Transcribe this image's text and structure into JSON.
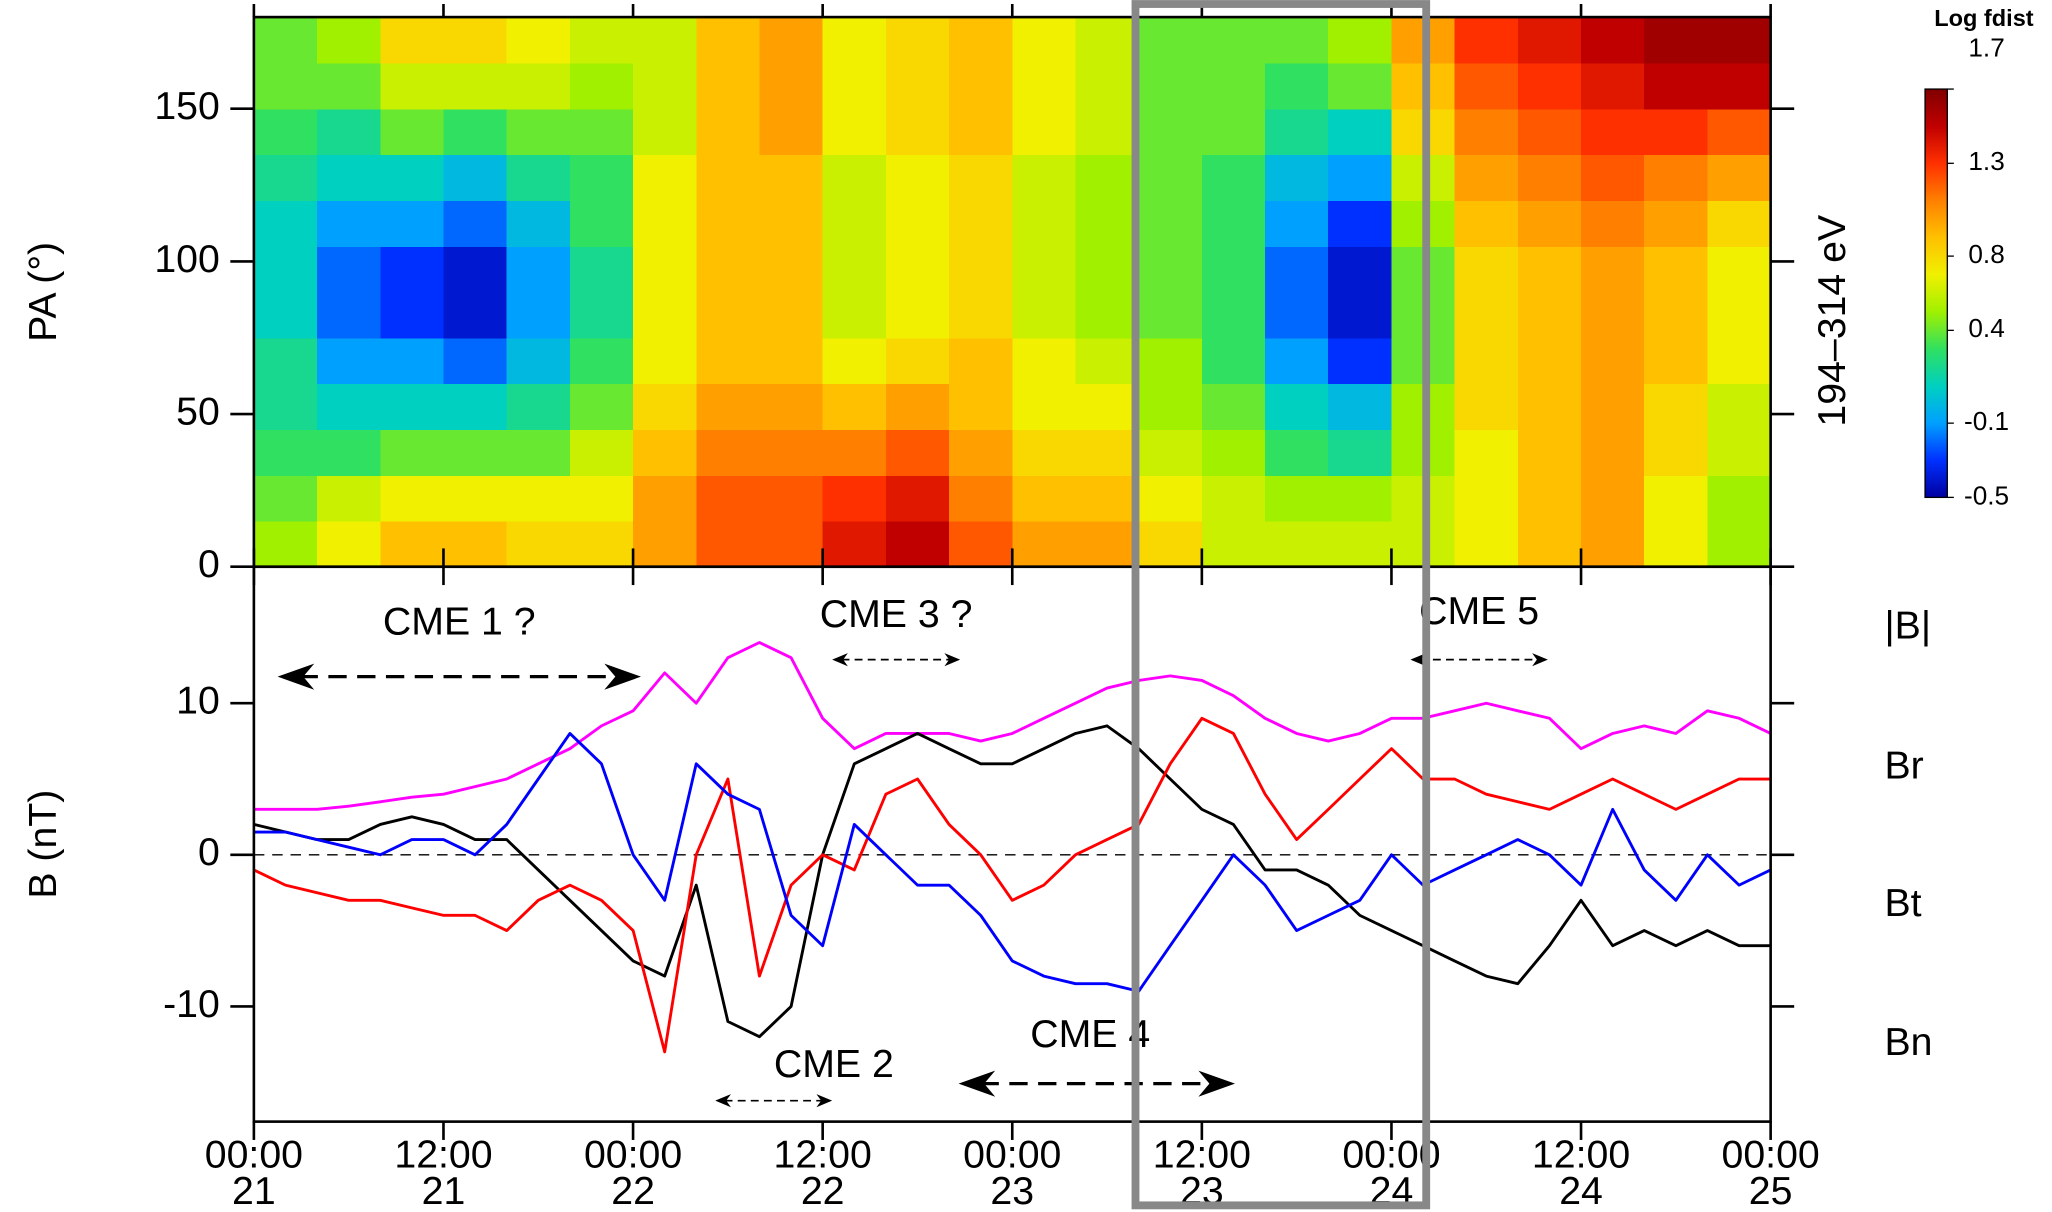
{
  "chart_data": [
    {
      "type": "heatmap",
      "ylabel": "PA (°)",
      "right_label": "194–314 eV",
      "colorbar_title": "Log fdist",
      "x": [
        0,
        4,
        8,
        12,
        16,
        20,
        24,
        28,
        32,
        36,
        40,
        44,
        48,
        52,
        56,
        60,
        64,
        68,
        72,
        76,
        80,
        84,
        88,
        92,
        96
      ],
      "y": [
        0,
        15,
        30,
        45,
        60,
        75,
        90,
        105,
        120,
        135,
        150,
        165,
        180
      ],
      "values": [
        [
          0.5,
          0.4,
          0.3,
          0.2,
          0.2,
          0.1,
          0.1,
          0.1,
          0.2,
          0.3,
          0.4,
          0.4
        ],
        [
          0.7,
          0.6,
          0.3,
          0.1,
          -0.1,
          -0.2,
          -0.2,
          -0.1,
          0.1,
          0.2,
          0.4,
          0.5
        ],
        [
          0.9,
          0.7,
          0.4,
          0.1,
          -0.1,
          -0.3,
          -0.3,
          -0.1,
          0.1,
          0.4,
          0.6,
          0.8
        ],
        [
          0.9,
          0.7,
          0.4,
          0.1,
          -0.2,
          -0.4,
          -0.4,
          -0.2,
          0.0,
          0.3,
          0.6,
          0.8
        ],
        [
          0.8,
          0.7,
          0.4,
          0.2,
          0.0,
          -0.1,
          -0.1,
          0.0,
          0.2,
          0.4,
          0.6,
          0.7
        ],
        [
          0.8,
          0.7,
          0.6,
          0.4,
          0.3,
          0.2,
          0.2,
          0.3,
          0.3,
          0.4,
          0.5,
          0.6
        ],
        [
          1.0,
          1.0,
          0.9,
          0.8,
          0.7,
          0.7,
          0.7,
          0.7,
          0.7,
          0.6,
          0.6,
          0.6
        ],
        [
          1.2,
          1.2,
          1.1,
          1.0,
          0.9,
          0.9,
          0.9,
          0.9,
          0.9,
          0.9,
          0.9,
          0.9
        ],
        [
          1.2,
          1.2,
          1.1,
          1.0,
          0.9,
          0.9,
          0.9,
          0.9,
          0.9,
          1.0,
          1.0,
          1.0
        ],
        [
          1.4,
          1.3,
          1.1,
          0.9,
          0.7,
          0.6,
          0.6,
          0.6,
          0.6,
          0.7,
          0.7,
          0.7
        ],
        [
          1.5,
          1.4,
          1.2,
          1.0,
          0.8,
          0.7,
          0.7,
          0.7,
          0.7,
          0.8,
          0.8,
          0.8
        ],
        [
          1.2,
          1.1,
          1.0,
          0.9,
          0.9,
          0.8,
          0.8,
          0.8,
          0.8,
          0.9,
          0.9,
          0.9
        ],
        [
          1.0,
          0.9,
          0.8,
          0.7,
          0.7,
          0.6,
          0.6,
          0.6,
          0.6,
          0.7,
          0.7,
          0.7
        ],
        [
          1.0,
          0.9,
          0.8,
          0.7,
          0.6,
          0.5,
          0.5,
          0.5,
          0.5,
          0.6,
          0.6,
          0.6
        ],
        [
          0.8,
          0.7,
          0.6,
          0.5,
          0.5,
          0.4,
          0.4,
          0.4,
          0.4,
          0.4,
          0.4,
          0.4
        ],
        [
          0.6,
          0.6,
          0.5,
          0.4,
          0.3,
          0.3,
          0.3,
          0.3,
          0.3,
          0.4,
          0.4,
          0.4
        ],
        [
          0.6,
          0.5,
          0.3,
          0.1,
          -0.1,
          -0.2,
          -0.2,
          -0.1,
          0.0,
          0.2,
          0.3,
          0.4
        ],
        [
          0.6,
          0.5,
          0.2,
          0.0,
          -0.3,
          -0.4,
          -0.4,
          -0.3,
          -0.1,
          0.1,
          0.4,
          0.5
        ],
        [
          0.6,
          0.6,
          0.5,
          0.5,
          0.4,
          0.4,
          0.4,
          0.5,
          0.6,
          0.8,
          0.9,
          1.0
        ],
        [
          0.7,
          0.7,
          0.7,
          0.8,
          0.8,
          0.8,
          0.8,
          0.9,
          1.0,
          1.1,
          1.2,
          1.3
        ],
        [
          0.9,
          0.9,
          0.9,
          0.9,
          0.9,
          0.9,
          0.9,
          1.0,
          1.1,
          1.2,
          1.3,
          1.4
        ],
        [
          1.0,
          1.0,
          1.0,
          1.0,
          1.0,
          1.0,
          1.0,
          1.1,
          1.2,
          1.3,
          1.4,
          1.5
        ],
        [
          0.7,
          0.7,
          0.8,
          0.8,
          0.9,
          0.9,
          0.9,
          1.0,
          1.1,
          1.3,
          1.5,
          1.6
        ],
        [
          0.5,
          0.5,
          0.6,
          0.6,
          0.7,
          0.7,
          0.7,
          0.8,
          1.0,
          1.2,
          1.5,
          1.6
        ]
      ],
      "xlim": [
        0,
        96
      ],
      "ylim": [
        0,
        180
      ],
      "xticks": [
        0,
        12,
        24,
        36,
        48,
        60,
        72,
        84,
        96
      ],
      "yticks": [
        0,
        50,
        100,
        150
      ],
      "clim": [
        -0.5,
        1.7
      ],
      "cticks": [
        -0.5,
        -0.1,
        0.4,
        0.8,
        1.3,
        1.7
      ],
      "colormap": [
        "#0000a0",
        "#0030ff",
        "#00a0ff",
        "#00d0c0",
        "#30e060",
        "#a0f000",
        "#f0f000",
        "#ffc000",
        "#ff8000",
        "#ff3000",
        "#c00000",
        "#800000"
      ]
    },
    {
      "type": "line",
      "ylabel": "B (nT)",
      "x": [
        0,
        2,
        4,
        6,
        8,
        10,
        12,
        14,
        16,
        18,
        20,
        22,
        24,
        26,
        28,
        30,
        32,
        34,
        36,
        38,
        40,
        42,
        44,
        46,
        48,
        50,
        52,
        54,
        56,
        58,
        60,
        62,
        64,
        66,
        68,
        70,
        72,
        74,
        76,
        78,
        80,
        82,
        84,
        86,
        88,
        90,
        92,
        94,
        96
      ],
      "series": [
        {
          "name": "|B|",
          "color": "#ff00ff",
          "values": [
            3,
            3,
            3,
            3.2,
            3.5,
            3.8,
            4,
            4.5,
            5,
            6,
            7,
            8.5,
            9.5,
            12,
            10,
            13,
            14,
            13,
            9,
            7,
            8,
            8,
            8,
            7.5,
            8,
            9,
            10,
            11,
            11.5,
            11.8,
            11.5,
            10.5,
            9,
            8,
            7.5,
            8,
            9,
            9,
            9.5,
            10,
            9.5,
            9,
            7,
            8,
            8.5,
            8,
            9.5,
            9,
            8
          ]
        },
        {
          "name": "Br",
          "color": "#000000",
          "values": [
            2,
            1.5,
            1,
            1,
            2,
            2.5,
            2,
            1,
            1,
            -1,
            -3,
            -5,
            -7,
            -8,
            -2,
            -11,
            -12,
            -10,
            0,
            6,
            7,
            8,
            7,
            6,
            6,
            7,
            8,
            8.5,
            7,
            5,
            3,
            2,
            -1,
            -1,
            -2,
            -4,
            -5,
            -6,
            -7,
            -8,
            -8.5,
            -6,
            -3,
            -6,
            -5,
            -6,
            -5,
            -6,
            -6
          ]
        },
        {
          "name": "Bt",
          "color": "#ff0000",
          "values": [
            -1,
            -2,
            -2.5,
            -3,
            -3,
            -3.5,
            -4,
            -4,
            -5,
            -3,
            -2,
            -3,
            -5,
            -13,
            0,
            5,
            -8,
            -2,
            0,
            -1,
            4,
            5,
            2,
            0,
            -3,
            -2,
            0,
            1,
            2,
            6,
            9,
            8,
            4,
            1,
            3,
            5,
            7,
            5,
            5,
            4,
            3.5,
            3,
            4,
            5,
            4,
            3,
            4,
            5,
            5
          ]
        },
        {
          "name": "Bn",
          "color": "#0000ff",
          "values": [
            1.5,
            1.5,
            1,
            0.5,
            0,
            1,
            1,
            0,
            2,
            5,
            8,
            6,
            0,
            -3,
            6,
            4,
            3,
            -4,
            -6,
            2,
            0,
            -2,
            -2,
            -4,
            -7,
            -8,
            -8.5,
            -8.5,
            -9,
            -6,
            -3,
            0,
            -2,
            -5,
            -4,
            -3,
            0,
            -2,
            -1,
            0,
            1,
            0,
            -2,
            3,
            -1,
            -3,
            0,
            -2,
            -1
          ]
        }
      ],
      "xlim": [
        0,
        96
      ],
      "ylim": [
        -17.6,
        19
      ],
      "yticks": [
        -10,
        0,
        10
      ],
      "xticks": [
        {
          "value": 0,
          "label": "00:00",
          "day": "21"
        },
        {
          "value": 12,
          "label": "12:00",
          "day": "21"
        },
        {
          "value": 24,
          "label": "00:00",
          "day": "22"
        },
        {
          "value": 36,
          "label": "12:00",
          "day": "22"
        },
        {
          "value": 48,
          "label": "00:00",
          "day": "23"
        },
        {
          "value": 60,
          "label": "12:00",
          "day": "23"
        },
        {
          "value": 72,
          "label": "00:00",
          "day": "24"
        },
        {
          "value": 84,
          "label": "12:00",
          "day": "24"
        },
        {
          "value": 96,
          "label": "00:00",
          "day": "25"
        }
      ],
      "zero_line": 0,
      "highlight": [
        55.8,
        74.2
      ],
      "highlight_color": "#888888",
      "annotations": [
        {
          "text": "CME 1 ?",
          "start": 1.5,
          "end": 24.5
        },
        {
          "text": "CME 2",
          "start": 29.2,
          "end": 36.6
        },
        {
          "text": "CME 3 ?",
          "start": 36.6,
          "end": 44.7
        },
        {
          "text": "CME 4",
          "start": 44.6,
          "end": 62.1
        },
        {
          "text": "CME 5",
          "start": 73.2,
          "end": 81.9
        }
      ]
    }
  ]
}
